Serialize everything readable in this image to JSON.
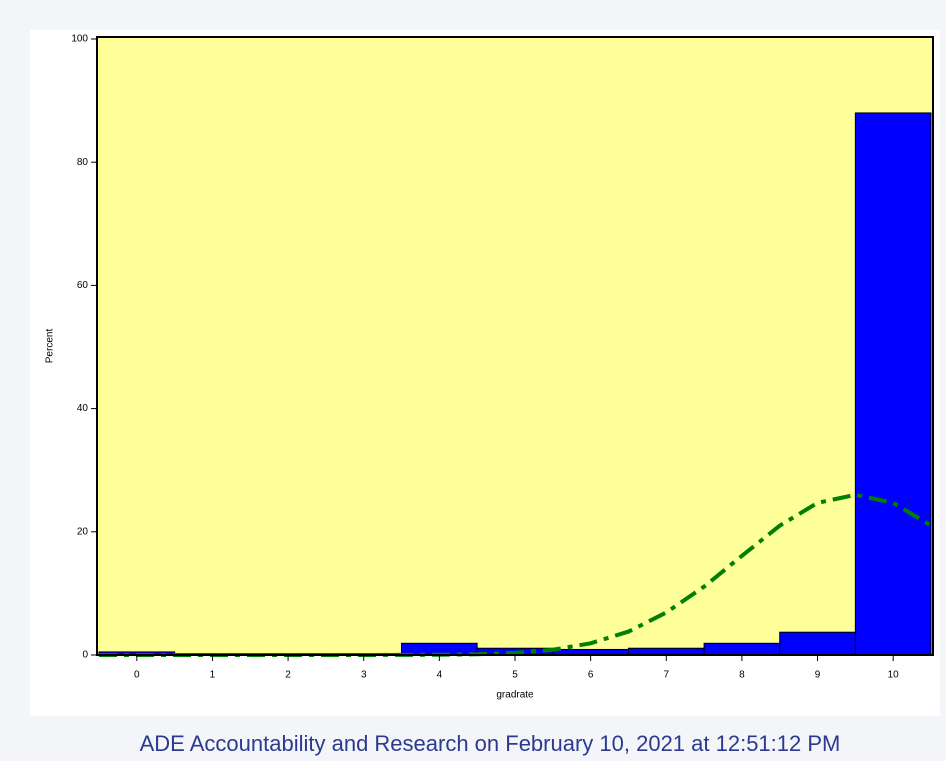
{
  "chart_data": {
    "type": "histogram",
    "bins": [
      -0.5,
      0.5,
      1.5,
      2.5,
      3.5,
      4.5,
      5.5,
      6.5,
      7.5,
      8.5,
      9.5,
      10.5
    ],
    "values": [
      0.5,
      0.2,
      0.2,
      0.2,
      1.9,
      1.1,
      0.9,
      1.1,
      1.9,
      3.7,
      88
    ],
    "color": "#0000ff",
    "background": "#ffff99",
    "xlabel": "gradrate",
    "ylabel": "Percent",
    "xlim": [
      -0.5,
      10.5
    ],
    "xticks": [
      0,
      1,
      2,
      3,
      4,
      5,
      6,
      7,
      8,
      9,
      10
    ],
    "ylim": [
      0,
      100
    ],
    "yticks": [
      0,
      20,
      40,
      60,
      80,
      100
    ],
    "curve": {
      "color": "#008000",
      "dashed": true,
      "x": [
        -0.5,
        0,
        1,
        2,
        3,
        4,
        4.5,
        5,
        5.5,
        6,
        6.5,
        7,
        7.5,
        8,
        8.5,
        9,
        9.5,
        10,
        10.5
      ],
      "values": [
        0,
        0,
        0,
        0,
        0,
        0.04,
        0.12,
        0.35,
        0.85,
        1.9,
        3.8,
        6.9,
        11.1,
        16.1,
        21.0,
        24.7,
        26,
        24.7,
        21.0
      ]
    },
    "footer": "ADE Accountability and Research on February 10, 2021 at 12:51:12 PM"
  }
}
